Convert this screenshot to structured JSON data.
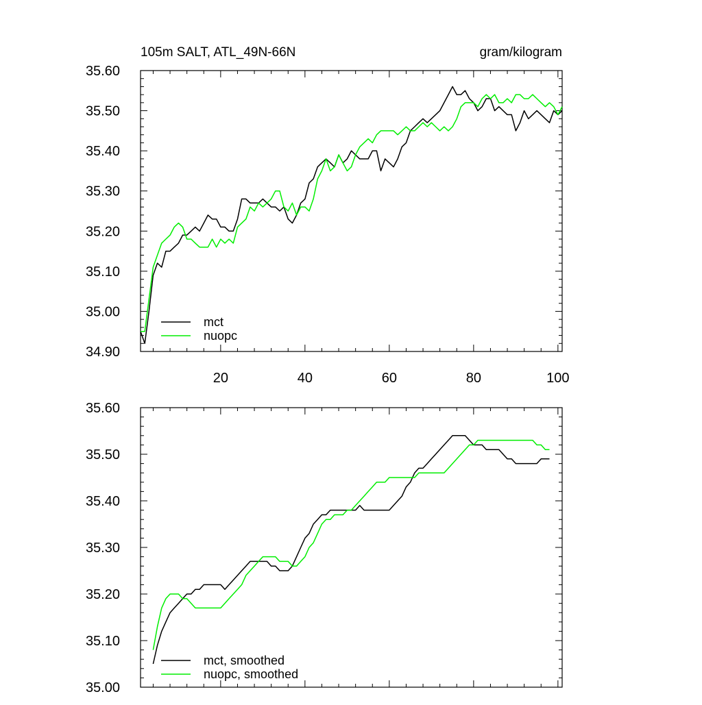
{
  "chart_data": [
    {
      "type": "line",
      "title": "105m SALT, ATL_49N-66N",
      "units": "gram/kilogram",
      "xlim": [
        1,
        101
      ],
      "ylim": [
        34.9,
        35.6
      ],
      "yticks": [
        "34.90",
        "35.00",
        "35.10",
        "35.20",
        "35.30",
        "35.40",
        "35.50",
        "35.60"
      ],
      "xticks": [
        "20",
        "40",
        "60",
        "80",
        "100"
      ],
      "legend": [
        "mct",
        "nuopc"
      ],
      "series": [
        {
          "name": "mct",
          "color": "#000000",
          "x_start": 1,
          "values": [
            34.95,
            34.92,
            35.0,
            35.09,
            35.12,
            35.11,
            35.15,
            35.15,
            35.16,
            35.17,
            35.19,
            35.19,
            35.2,
            35.21,
            35.2,
            35.22,
            35.24,
            35.23,
            35.23,
            35.21,
            35.21,
            35.2,
            35.2,
            35.23,
            35.28,
            35.28,
            35.27,
            35.27,
            35.27,
            35.28,
            35.27,
            35.26,
            35.26,
            35.25,
            35.26,
            35.23,
            35.22,
            35.24,
            35.27,
            35.28,
            35.32,
            35.33,
            35.36,
            35.37,
            35.38,
            35.37,
            35.36,
            35.39,
            35.37,
            35.38,
            35.4,
            35.39,
            35.38,
            35.38,
            35.38,
            35.4,
            35.4,
            35.35,
            35.38,
            35.37,
            35.36,
            35.38,
            35.41,
            35.42,
            35.45,
            35.46,
            35.47,
            35.48,
            35.47,
            35.48,
            35.49,
            35.5,
            35.52,
            35.54,
            35.56,
            35.54,
            35.54,
            35.55,
            35.53,
            35.52,
            35.5,
            35.51,
            35.53,
            35.53,
            35.5,
            35.51,
            35.5,
            35.49,
            35.49,
            35.45,
            35.47,
            35.5,
            35.48,
            35.49,
            35.5,
            35.49,
            35.48,
            35.47,
            35.5,
            35.49,
            35.5
          ]
        },
        {
          "name": "nuopc",
          "color": "#00ee00",
          "x_start": 1,
          "values": [
            34.95,
            34.95,
            35.03,
            35.11,
            35.14,
            35.17,
            35.18,
            35.19,
            35.21,
            35.22,
            35.21,
            35.18,
            35.18,
            35.17,
            35.16,
            35.16,
            35.16,
            35.18,
            35.16,
            35.18,
            35.17,
            35.18,
            35.17,
            35.21,
            35.22,
            35.23,
            35.26,
            35.25,
            35.27,
            35.26,
            35.27,
            35.28,
            35.3,
            35.3,
            35.26,
            35.25,
            35.27,
            35.24,
            35.26,
            35.26,
            35.25,
            35.28,
            35.33,
            35.35,
            35.38,
            35.35,
            35.36,
            35.39,
            35.37,
            35.35,
            35.36,
            35.39,
            35.41,
            35.42,
            35.43,
            35.42,
            35.44,
            35.45,
            35.45,
            35.45,
            35.45,
            35.44,
            35.45,
            35.46,
            35.45,
            35.45,
            35.46,
            35.47,
            35.46,
            35.47,
            35.46,
            35.45,
            35.46,
            35.45,
            35.46,
            35.48,
            35.51,
            35.52,
            35.52,
            35.52,
            35.51,
            35.53,
            35.54,
            35.53,
            35.54,
            35.52,
            35.52,
            35.53,
            35.52,
            35.54,
            35.54,
            35.53,
            35.53,
            35.54,
            35.53,
            35.52,
            35.51,
            35.52,
            35.51,
            35.49,
            35.51
          ]
        }
      ]
    },
    {
      "type": "line",
      "xlim": [
        1,
        101
      ],
      "ylim": [
        35.0,
        35.6
      ],
      "yticks": [
        "35.00",
        "35.10",
        "35.20",
        "35.30",
        "35.40",
        "35.50",
        "35.60"
      ],
      "legend": [
        "mct, smoothed",
        "nuopc, smoothed"
      ],
      "series": [
        {
          "name": "mct, smoothed",
          "color": "#000000",
          "x": [
            4,
            5,
            6,
            7,
            8,
            9,
            10,
            11,
            12,
            13,
            14,
            15,
            16,
            17,
            18,
            19,
            20,
            21,
            22,
            23,
            24,
            25,
            26,
            27,
            28,
            29,
            30,
            31,
            32,
            33,
            34,
            35,
            36,
            37,
            38,
            39,
            40,
            41,
            42,
            43,
            44,
            45,
            46,
            47,
            48,
            49,
            50,
            51,
            52,
            53,
            54,
            55,
            56,
            57,
            58,
            59,
            60,
            61,
            62,
            63,
            64,
            65,
            66,
            67,
            68,
            69,
            70,
            71,
            72,
            73,
            74,
            75,
            76,
            77,
            78,
            79,
            80,
            81,
            82,
            83,
            84,
            85,
            86,
            87,
            88,
            89,
            90,
            91,
            92,
            93,
            94,
            95,
            96,
            97,
            98
          ],
          "values": [
            35.05,
            35.09,
            35.12,
            35.14,
            35.16,
            35.17,
            35.18,
            35.19,
            35.2,
            35.2,
            35.21,
            35.21,
            35.22,
            35.22,
            35.22,
            35.22,
            35.22,
            35.21,
            35.22,
            35.23,
            35.24,
            35.25,
            35.26,
            35.27,
            35.27,
            35.27,
            35.27,
            35.27,
            35.26,
            35.26,
            35.25,
            35.25,
            35.25,
            35.26,
            35.28,
            35.3,
            35.32,
            35.33,
            35.35,
            35.36,
            35.37,
            35.37,
            35.38,
            35.38,
            35.38,
            35.38,
            35.38,
            35.38,
            35.38,
            35.39,
            35.38,
            35.38,
            35.38,
            35.38,
            35.38,
            35.38,
            35.38,
            35.39,
            35.4,
            35.41,
            35.43,
            35.44,
            35.46,
            35.47,
            35.47,
            35.48,
            35.49,
            35.5,
            35.51,
            35.52,
            35.53,
            35.54,
            35.54,
            35.54,
            35.54,
            35.53,
            35.52,
            35.52,
            35.52,
            35.51,
            35.51,
            35.51,
            35.51,
            35.5,
            35.49,
            35.49,
            35.48,
            35.48,
            35.48,
            35.48,
            35.48,
            35.48,
            35.49,
            35.49,
            35.49
          ]
        },
        {
          "name": "nuopc, smoothed",
          "color": "#00ee00",
          "x": [
            4,
            5,
            6,
            7,
            8,
            9,
            10,
            11,
            12,
            13,
            14,
            15,
            16,
            17,
            18,
            19,
            20,
            21,
            22,
            23,
            24,
            25,
            26,
            27,
            28,
            29,
            30,
            31,
            32,
            33,
            34,
            35,
            36,
            37,
            38,
            39,
            40,
            41,
            42,
            43,
            44,
            45,
            46,
            47,
            48,
            49,
            50,
            51,
            52,
            53,
            54,
            55,
            56,
            57,
            58,
            59,
            60,
            61,
            62,
            63,
            64,
            65,
            66,
            67,
            68,
            69,
            70,
            71,
            72,
            73,
            74,
            75,
            76,
            77,
            78,
            79,
            80,
            81,
            82,
            83,
            84,
            85,
            86,
            87,
            88,
            89,
            90,
            91,
            92,
            93,
            94,
            95,
            96,
            97,
            98
          ],
          "values": [
            35.08,
            35.13,
            35.17,
            35.19,
            35.2,
            35.2,
            35.2,
            35.19,
            35.19,
            35.18,
            35.17,
            35.17,
            35.17,
            35.17,
            35.17,
            35.17,
            35.17,
            35.18,
            35.19,
            35.2,
            35.21,
            35.22,
            35.24,
            35.25,
            35.26,
            35.27,
            35.28,
            35.28,
            35.28,
            35.28,
            35.27,
            35.27,
            35.27,
            35.26,
            35.26,
            35.27,
            35.28,
            35.3,
            35.31,
            35.33,
            35.35,
            35.36,
            35.36,
            35.37,
            35.37,
            35.37,
            35.38,
            35.38,
            35.39,
            35.4,
            35.41,
            35.42,
            35.43,
            35.44,
            35.44,
            35.44,
            35.45,
            35.45,
            35.45,
            35.45,
            35.45,
            35.45,
            35.45,
            35.46,
            35.46,
            35.46,
            35.46,
            35.46,
            35.46,
            35.46,
            35.47,
            35.48,
            35.49,
            35.5,
            35.51,
            35.52,
            35.52,
            35.53,
            35.53,
            35.53,
            35.53,
            35.53,
            35.53,
            35.53,
            35.53,
            35.53,
            35.53,
            35.53,
            35.53,
            35.53,
            35.53,
            35.52,
            35.52,
            35.51,
            35.51
          ]
        }
      ]
    }
  ]
}
